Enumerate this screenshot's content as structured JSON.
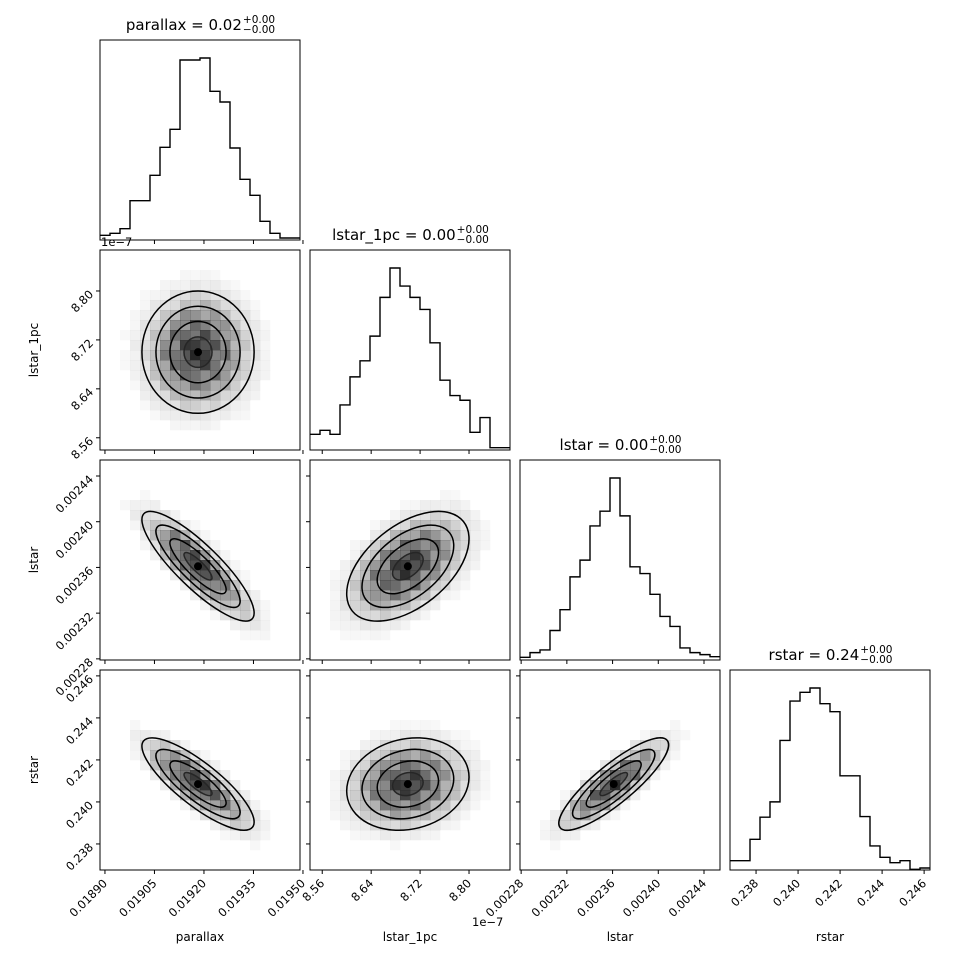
{
  "chart_data": {
    "type": "corner",
    "params": [
      {
        "name": "parallax",
        "label": "parallax",
        "title_main": "parallax = 0.02",
        "title_plus": "+0.00",
        "title_minus": "−0.00",
        "range": [
          0.018885,
          0.019491
        ],
        "mean": 0.019182,
        "sigma": 8.5e-05,
        "ticks": [
          0.0189,
          0.01905,
          0.0192,
          0.01935,
          0.0195
        ],
        "tick_labels": [
          "0.01890",
          "0.01905",
          "0.01920",
          "0.01935",
          "0.01950"
        ],
        "hist": [
          14,
          20,
          34,
          118,
          118,
          194,
          278,
          332,
          540,
          540,
          546,
          446,
          414,
          276,
          182,
          134,
          56,
          20,
          6,
          6
        ]
      },
      {
        "name": "lstar_1pc",
        "label": "lstar_1pc",
        "title_main": "lstar_1pc = 0.00",
        "title_plus": "+0.00",
        "title_minus": "−0.00",
        "offset_label": "1e−7",
        "range": [
          8.54,
          8.867
        ],
        "mean": 8.7,
        "sigma": 0.05,
        "ticks": [
          8.56,
          8.64,
          8.72,
          8.8
        ],
        "tick_labels": [
          "8.56",
          "8.64",
          "8.72",
          "8.80"
        ],
        "hist": [
          47,
          59,
          47,
          135,
          219,
          267,
          341,
          457,
          545,
          491,
          457,
          421,
          321,
          209,
          163,
          149,
          53,
          97,
          7,
          7
        ]
      },
      {
        "name": "lstar",
        "label": "lstar",
        "title_main": "lstar = 0.00",
        "title_plus": "+0.00",
        "title_minus": "−0.00",
        "range": [
          0.002279,
          0.002454
        ],
        "mean": 0.002361,
        "sigma": 2.4e-05,
        "ticks": [
          0.00228,
          0.00232,
          0.00236,
          0.0024,
          0.00244
        ],
        "tick_labels": [
          "0.00228",
          "0.00232",
          "0.00236",
          "0.00240",
          "0.00244"
        ],
        "hist": [
          8,
          22,
          30,
          88,
          150,
          248,
          298,
          400,
          444,
          543,
          430,
          278,
          258,
          196,
          130,
          100,
          36,
          22,
          16,
          10
        ]
      },
      {
        "name": "rstar",
        "label": "rstar",
        "title_main": "rstar = 0.24",
        "title_plus": "+0.00",
        "title_minus": "−0.00",
        "range": [
          0.23676,
          0.24628
        ],
        "mean": 0.24085,
        "sigma": 0.0011,
        "ticks": [
          0.238,
          0.24,
          0.242,
          0.244,
          0.246
        ],
        "tick_labels": [
          "0.238",
          "0.240",
          "0.242",
          "0.244",
          "0.246"
        ],
        "hist": [
          28,
          28,
          92,
          158,
          204,
          388,
          506,
          532,
          545,
          498,
          474,
          282,
          282,
          160,
          72,
          38,
          22,
          28,
          2,
          6
        ]
      }
    ],
    "pairs": [
      {
        "x": 0,
        "y": 1,
        "corr": 0.0
      },
      {
        "x": 0,
        "y": 2,
        "corr": -0.85
      },
      {
        "x": 1,
        "y": 2,
        "corr": 0.5
      },
      {
        "x": 0,
        "y": 3,
        "corr": -0.82
      },
      {
        "x": 1,
        "y": 3,
        "corr": 0.15
      },
      {
        "x": 2,
        "y": 3,
        "corr": 0.85
      }
    ],
    "contour_sigma_levels": [
      0.5,
      1.0,
      1.5,
      2.0
    ],
    "bins": 20,
    "colors": {
      "line": "#000000",
      "density": "#000000"
    }
  }
}
